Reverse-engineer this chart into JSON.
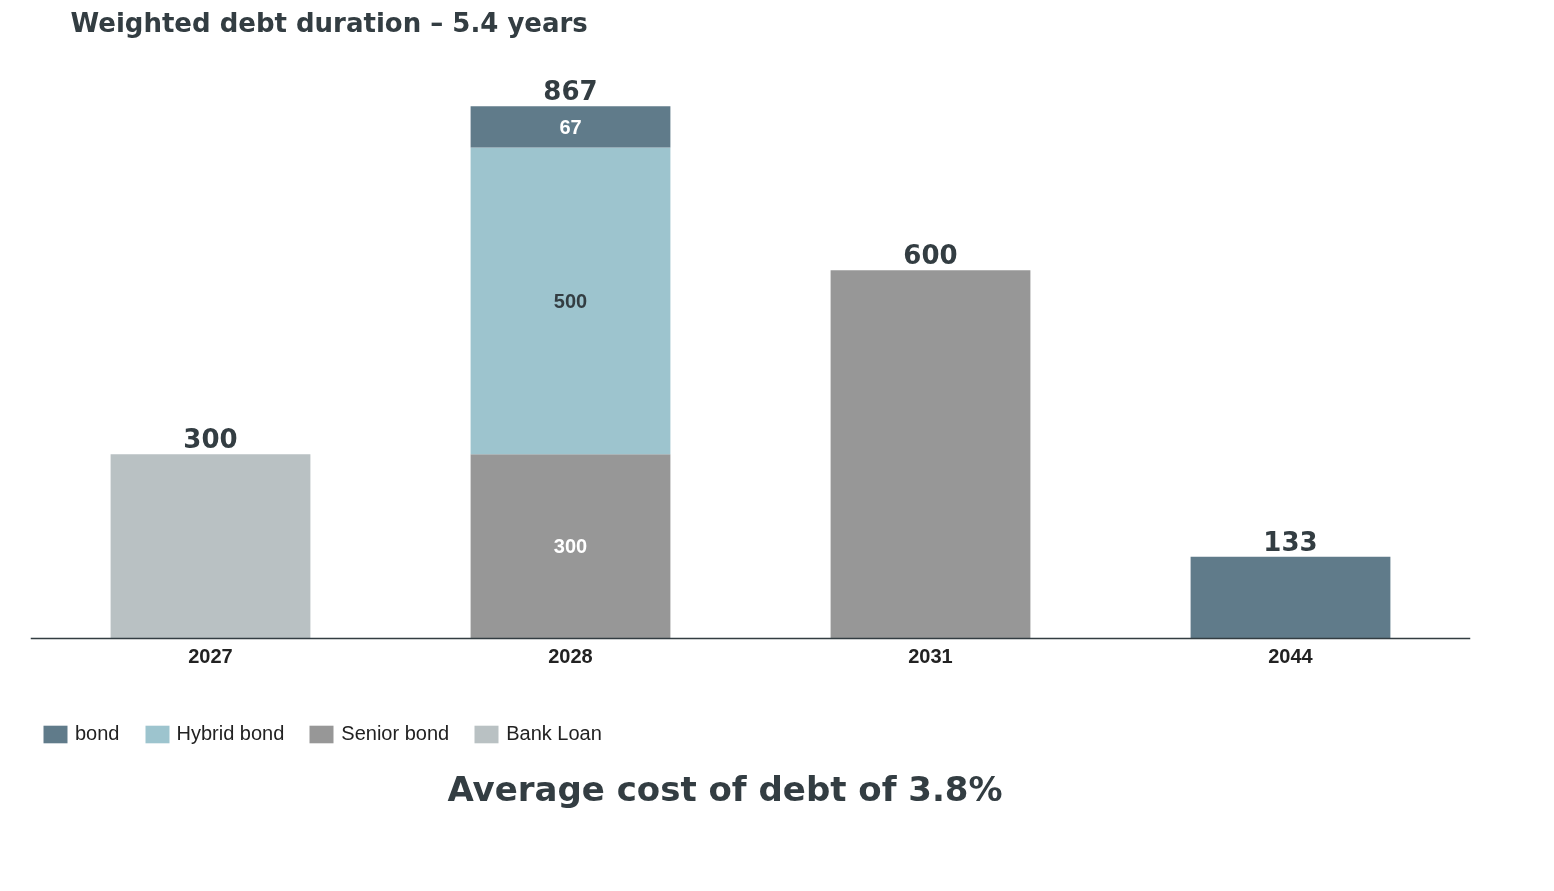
{
  "chart_data": {
    "type": "bar",
    "title": "Weighted debt duration – 5.4 years",
    "categories": [
      "2027",
      "2028",
      "2031",
      "2044"
    ],
    "stacked": true,
    "series": [
      {
        "name": "Bank Loan",
        "color": "#b9c1c3",
        "values": [
          300,
          null,
          null,
          null
        ],
        "value_labels": [
          null,
          null,
          null,
          null
        ]
      },
      {
        "name": "Senior bond",
        "color": "#979797",
        "values": [
          null,
          300,
          600,
          null
        ],
        "value_labels": [
          null,
          "300",
          null,
          null
        ]
      },
      {
        "name": "Hybrid bond",
        "color": "#9dc4ce",
        "values": [
          null,
          500,
          null,
          null
        ],
        "value_labels": [
          null,
          "500",
          null,
          null
        ]
      },
      {
        "name": "bond",
        "color": "#607b8a",
        "values": [
          null,
          67,
          null,
          133
        ],
        "value_labels": [
          null,
          "67",
          null,
          null
        ]
      }
    ],
    "totals": [
      "300",
      "867",
      "600",
      "133"
    ],
    "legend": "bottom left",
    "grid": false,
    "annotations": [
      "Average cost of debt of 3.8%"
    ]
  }
}
